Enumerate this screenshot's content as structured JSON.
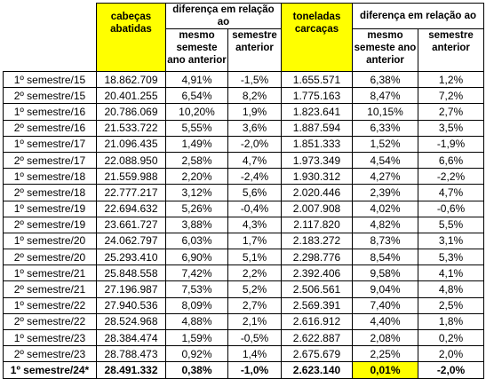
{
  "header": {
    "col1": "cabeças abatidas",
    "group1": "diferença em relação ao",
    "sub1": "mesmo semeste ano anterior",
    "sub2": "semestre anterior",
    "col4": "toneladas carcaças",
    "group2": "diferença em relação ao",
    "sub3": "mesmo semeste ano anterior",
    "sub4": "semestre anterior"
  },
  "table": {
    "rows": [
      [
        "1º semestre/15",
        "18.862.709",
        "4,91%",
        "-1,5%",
        "1.655.571",
        "6,38%",
        "1,2%"
      ],
      [
        "2º semestre/15",
        "20.401.255",
        "6,54%",
        "8,2%",
        "1.775.163",
        "8,47%",
        "7,2%"
      ],
      [
        "1º semestre/16",
        "20.786.069",
        "10,20%",
        "1,9%",
        "1.823.641",
        "10,15%",
        "2,7%"
      ],
      [
        "2º semestre/16",
        "21.533.722",
        "5,55%",
        "3,6%",
        "1.887.594",
        "6,33%",
        "3,5%"
      ],
      [
        "1º semestre/17",
        "21.096.435",
        "1,49%",
        "-2,0%",
        "1.851.333",
        "1,52%",
        "-1,9%"
      ],
      [
        "2º semestre/17",
        "22.088.950",
        "2,58%",
        "4,7%",
        "1.973.349",
        "4,54%",
        "6,6%"
      ],
      [
        "1º semestre/18",
        "21.559.988",
        "2,20%",
        "-2,4%",
        "1.930.312",
        "4,27%",
        "-2,2%"
      ],
      [
        "2º semestre/18",
        "22.777.217",
        "3,12%",
        "5,6%",
        "2.020.446",
        "2,39%",
        "4,7%"
      ],
      [
        "1º semestre/19",
        "22.694.632",
        "5,26%",
        "-0,4%",
        "2.007.908",
        "4,02%",
        "-0,6%"
      ],
      [
        "2º semestre/19",
        "23.661.727",
        "3,88%",
        "4,3%",
        "2.117.820",
        "4,82%",
        "5,5%"
      ],
      [
        "1º semestre/20",
        "24.062.797",
        "6,03%",
        "1,7%",
        "2.183.272",
        "8,73%",
        "3,1%"
      ],
      [
        "2º semestre/20",
        "25.293.410",
        "6,90%",
        "5,1%",
        "2.298.776",
        "8,54%",
        "5,3%"
      ],
      [
        "1º semestre/21",
        "25.848.558",
        "7,42%",
        "2,2%",
        "2.392.406",
        "9,58%",
        "4,1%"
      ],
      [
        "2º semestre/21",
        "27.196.987",
        "7,53%",
        "5,2%",
        "2.506.561",
        "9,04%",
        "4,8%"
      ],
      [
        "1º semestre/22",
        "27.940.536",
        "8,09%",
        "2,7%",
        "2.569.391",
        "7,40%",
        "2,5%"
      ],
      [
        "2º semestre/22",
        "28.524.968",
        "4,88%",
        "2,1%",
        "2.616.912",
        "4,40%",
        "1,8%"
      ],
      [
        "1º semestre/23",
        "28.384.474",
        "1,59%",
        "-0,5%",
        "2.622.887",
        "2,08%",
        "0,2%"
      ],
      [
        "2º semestre/23",
        "28.788.473",
        "0,92%",
        "1,4%",
        "2.675.679",
        "2,25%",
        "2,0%"
      ],
      [
        "1º semestre/24*",
        "28.491.332",
        "0,38%",
        "-1,0%",
        "2.623.140",
        "0,01%",
        "-2,0%"
      ]
    ]
  }
}
